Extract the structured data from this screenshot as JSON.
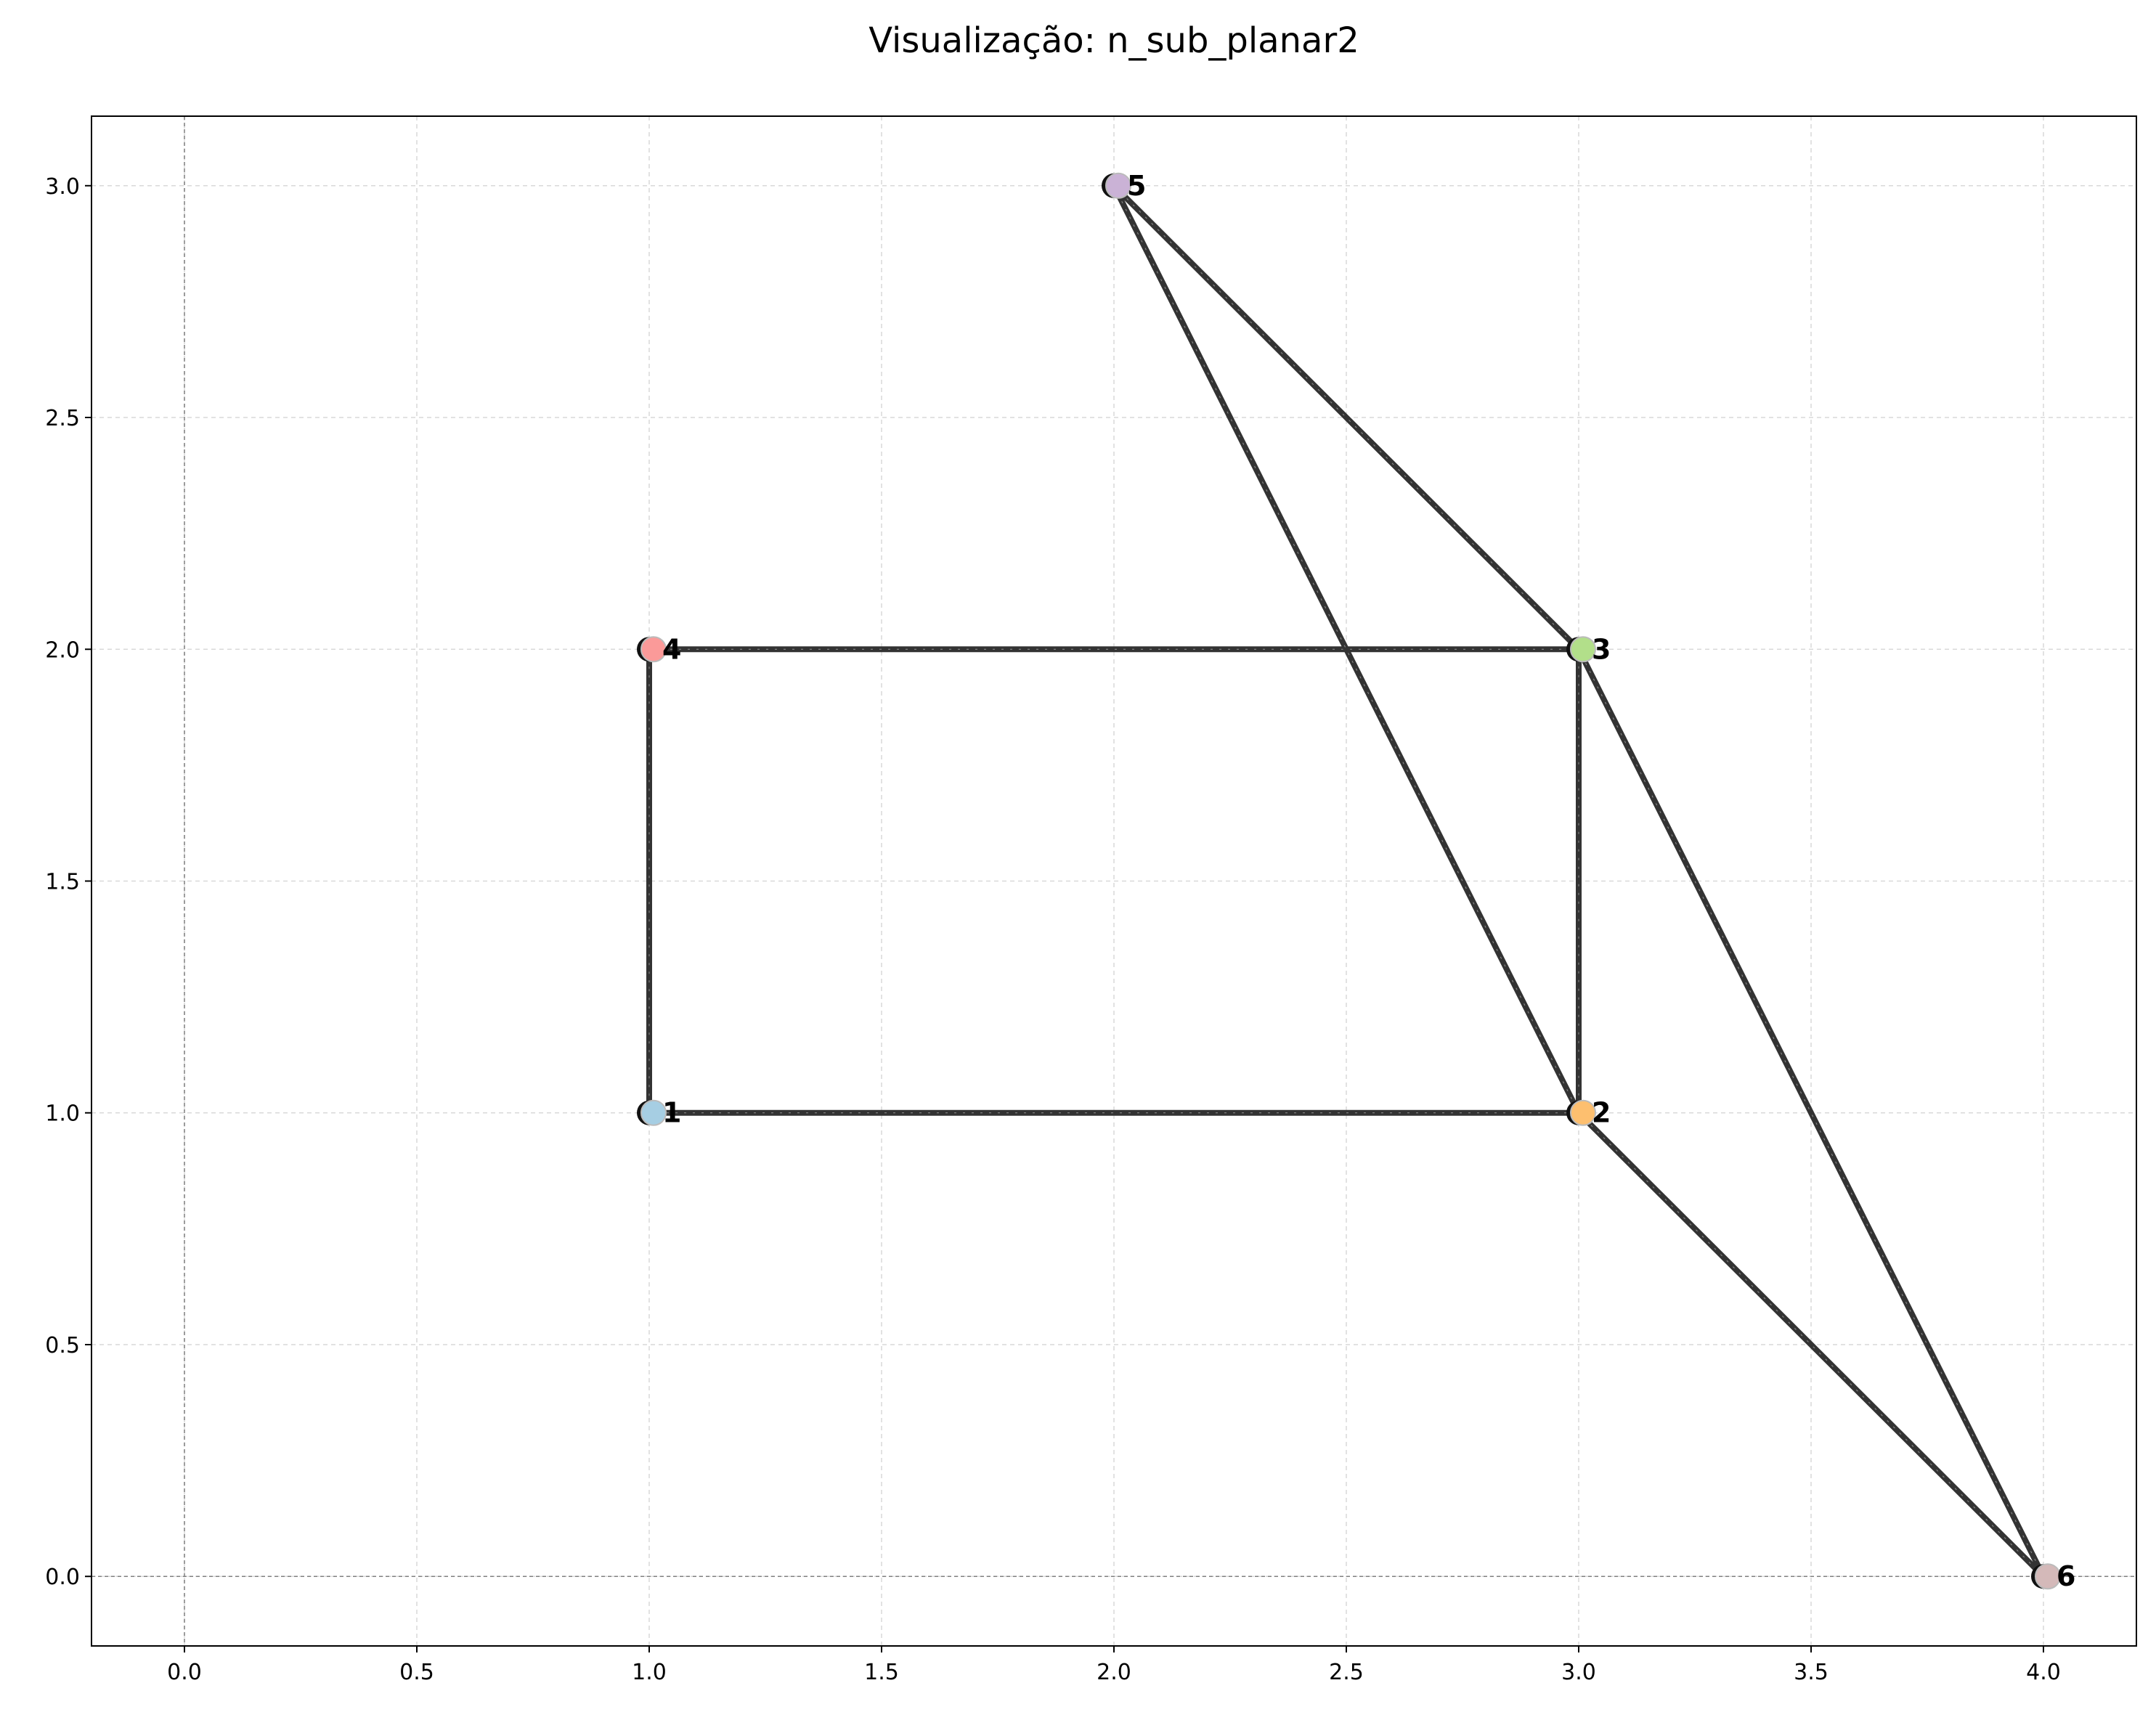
{
  "chart_data": {
    "type": "scatter",
    "title": "Visualização: n_sub_planar2",
    "xlabel": "",
    "ylabel": "",
    "xlim": [
      -0.2,
      4.2
    ],
    "ylim": [
      -0.15,
      3.15
    ],
    "xticks": [
      0.0,
      0.5,
      1.0,
      1.5,
      2.0,
      2.5,
      3.0,
      3.5,
      4.0
    ],
    "yticks": [
      0.0,
      0.5,
      1.0,
      1.5,
      2.0,
      2.5,
      3.0
    ],
    "xtick_labels": [
      "0.0",
      "0.5",
      "1.0",
      "1.5",
      "2.0",
      "2.5",
      "3.0",
      "3.5",
      "4.0"
    ],
    "ytick_labels": [
      "0.0",
      "0.5",
      "1.0",
      "1.5",
      "2.0",
      "2.5",
      "3.0"
    ],
    "grid": true,
    "reference_lines": {
      "x": 0,
      "y": 0
    },
    "nodes": [
      {
        "id": "1",
        "x": 1,
        "y": 1,
        "color": "#a6cee3"
      },
      {
        "id": "2",
        "x": 3,
        "y": 1,
        "color": "#fdbf6f"
      },
      {
        "id": "3",
        "x": 3,
        "y": 2,
        "color": "#b2df8a"
      },
      {
        "id": "4",
        "x": 1,
        "y": 2,
        "color": "#fb9a99"
      },
      {
        "id": "5",
        "x": 2,
        "y": 3,
        "color": "#cab2d6"
      },
      {
        "id": "6",
        "x": 4,
        "y": 0,
        "color": "#d4b9b9"
      }
    ],
    "edges": [
      [
        "1",
        "2"
      ],
      [
        "2",
        "3"
      ],
      [
        "3",
        "4"
      ],
      [
        "4",
        "1"
      ],
      [
        "3",
        "5"
      ],
      [
        "5",
        "2"
      ],
      [
        "2",
        "6"
      ],
      [
        "6",
        "3"
      ]
    ],
    "edge_color": "#333333"
  }
}
